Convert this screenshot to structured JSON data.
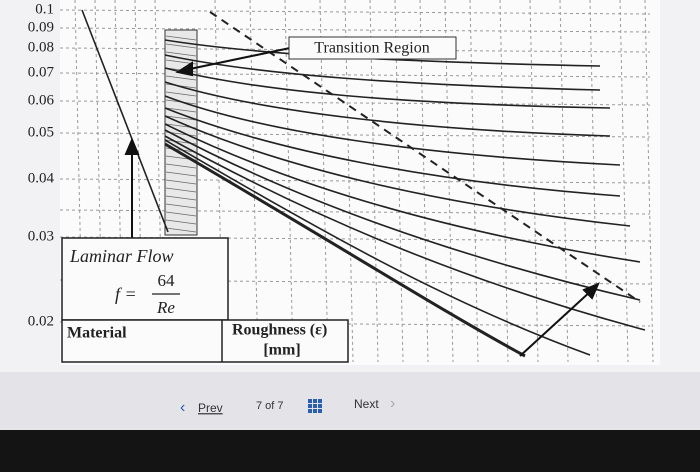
{
  "diagram": {
    "y_axis_labels": [
      "0.1",
      "0.09",
      "0.08",
      "0.07",
      "0.06",
      "0.05",
      "0.04",
      "0.03",
      "0.02"
    ],
    "transition_label": "Transition Region",
    "laminar": {
      "title": "Laminar Flow",
      "lhs": "f =",
      "numerator": "64",
      "denominator": "Re"
    },
    "table_headers": [
      "Material",
      "Roughness (ε)",
      "[mm]"
    ]
  },
  "navigation": {
    "prev": "Prev",
    "page": "7 of 7",
    "next": "Next"
  }
}
